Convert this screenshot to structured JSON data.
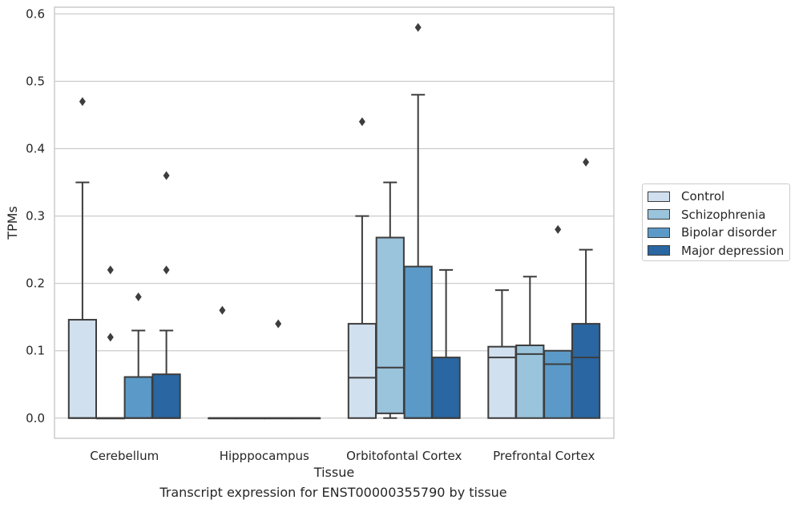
{
  "chart_data": {
    "type": "box",
    "title": "",
    "caption": "Transcript expression for ENST00000355790 by tissue",
    "xlabel": "Tissue",
    "ylabel": "TPMs",
    "ylim": [
      -0.03,
      0.61
    ],
    "yticks": [
      "0.0",
      "0.1",
      "0.2",
      "0.3",
      "0.4",
      "0.5",
      "0.6"
    ],
    "grid": true,
    "legend_position": "right",
    "categories": [
      "Cerebellum",
      "Hipppocampus",
      "Orbitofontal Cortex",
      "Prefrontal Cortex"
    ],
    "series": [
      {
        "name": "Control",
        "color": "#d1e0ef",
        "boxes": [
          {
            "q1": 0.0,
            "median": 0.0,
            "q3": 0.146,
            "whisker_low": 0.0,
            "whisker_high": 0.35,
            "outliers": [
              0.47
            ]
          },
          {
            "q1": 0.0,
            "median": 0.0,
            "q3": 0.0,
            "whisker_low": 0.0,
            "whisker_high": 0.0,
            "outliers": [
              0.16
            ]
          },
          {
            "q1": 0.0,
            "median": 0.06,
            "q3": 0.14,
            "whisker_low": 0.0,
            "whisker_high": 0.3,
            "outliers": [
              0.44
            ]
          },
          {
            "q1": 0.0,
            "median": 0.09,
            "q3": 0.106,
            "whisker_low": 0.0,
            "whisker_high": 0.19,
            "outliers": []
          }
        ]
      },
      {
        "name": "Schizophrenia",
        "color": "#9ac3dc",
        "boxes": [
          {
            "q1": 0.0,
            "median": 0.0,
            "q3": 0.0,
            "whisker_low": 0.0,
            "whisker_high": 0.0,
            "outliers": [
              0.12,
              0.22
            ]
          },
          {
            "q1": 0.0,
            "median": 0.0,
            "q3": 0.0,
            "whisker_low": 0.0,
            "whisker_high": 0.0,
            "outliers": []
          },
          {
            "q1": 0.007,
            "median": 0.075,
            "q3": 0.268,
            "whisker_low": 0.0,
            "whisker_high": 0.35,
            "outliers": []
          },
          {
            "q1": 0.0,
            "median": 0.095,
            "q3": 0.108,
            "whisker_low": 0.0,
            "whisker_high": 0.21,
            "outliers": []
          }
        ]
      },
      {
        "name": "Bipolar disorder",
        "color": "#5b9ac8",
        "boxes": [
          {
            "q1": 0.0,
            "median": 0.0,
            "q3": 0.061,
            "whisker_low": 0.0,
            "whisker_high": 0.13,
            "outliers": [
              0.18
            ]
          },
          {
            "q1": 0.0,
            "median": 0.0,
            "q3": 0.0,
            "whisker_low": 0.0,
            "whisker_high": 0.0,
            "outliers": [
              0.14
            ]
          },
          {
            "q1": 0.0,
            "median": 0.0,
            "q3": 0.225,
            "whisker_low": 0.0,
            "whisker_high": 0.48,
            "outliers": [
              0.58
            ]
          },
          {
            "q1": 0.0,
            "median": 0.08,
            "q3": 0.1,
            "whisker_low": 0.0,
            "whisker_high": 0.1,
            "outliers": [
              0.28
            ]
          }
        ]
      },
      {
        "name": "Major depression",
        "color": "#2966a2",
        "boxes": [
          {
            "q1": 0.0,
            "median": 0.0,
            "q3": 0.065,
            "whisker_low": 0.0,
            "whisker_high": 0.13,
            "outliers": [
              0.22,
              0.36
            ]
          },
          {
            "q1": 0.0,
            "median": 0.0,
            "q3": 0.0,
            "whisker_low": 0.0,
            "whisker_high": 0.0,
            "outliers": []
          },
          {
            "q1": 0.0,
            "median": 0.0,
            "q3": 0.09,
            "whisker_low": 0.0,
            "whisker_high": 0.22,
            "outliers": []
          },
          {
            "q1": 0.0,
            "median": 0.09,
            "q3": 0.14,
            "whisker_low": 0.0,
            "whisker_high": 0.25,
            "outliers": [
              0.38
            ]
          }
        ]
      }
    ]
  }
}
